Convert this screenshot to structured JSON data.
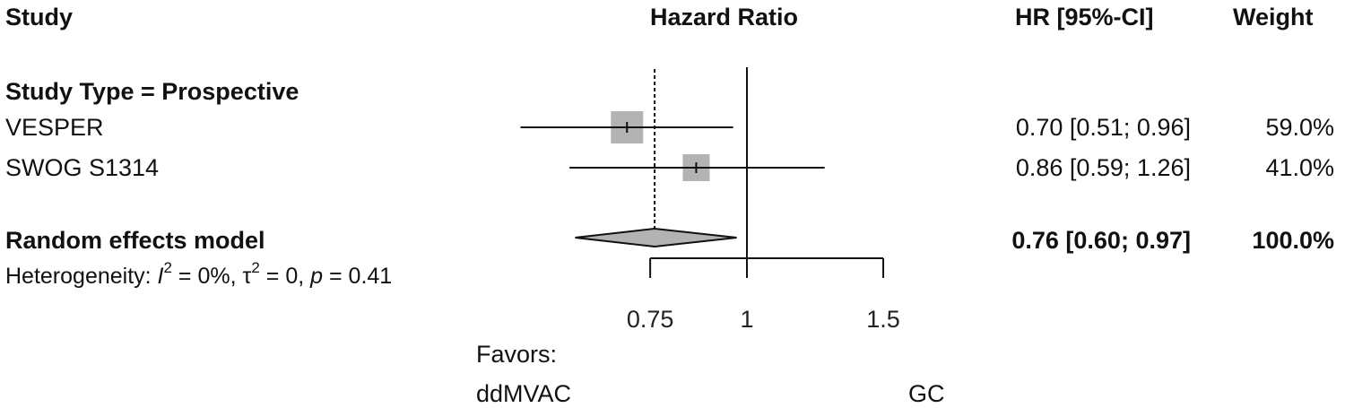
{
  "chart_data": {
    "type": "forest",
    "headers": {
      "study": "Study",
      "plot": "Hazard Ratio",
      "ci": "HR [95%-CI]",
      "weight": "Weight"
    },
    "subgroup": "Study Type = Prospective",
    "studies": [
      {
        "name": "VESPER",
        "hr": 0.7,
        "lower": 0.51,
        "upper": 0.96,
        "ci_text": "0.70 [0.51; 0.96]",
        "weight": 59.0,
        "weight_text": "59.0%"
      },
      {
        "name": "SWOG S1314",
        "hr": 0.86,
        "lower": 0.59,
        "upper": 1.26,
        "ci_text": "0.86 [0.59; 1.26]",
        "weight": 41.0,
        "weight_text": "41.0%"
      }
    ],
    "pooled": {
      "name": "Random effects model",
      "hr": 0.76,
      "lower": 0.6,
      "upper": 0.97,
      "ci_text": "0.76 [0.60; 0.97]",
      "weight_text": "100.0%"
    },
    "heterogeneity": {
      "prefix": "Heterogeneity: ",
      "i2_label": "I",
      "i2": " = 0%, ",
      "tau_label": "τ",
      "tau": " = 0, ",
      "p_label": "p",
      "p": " = 0.41"
    },
    "x_scale": "log",
    "x_ticks": [
      0.75,
      1,
      1.5
    ],
    "x_tick_labels": [
      "0.75",
      "1",
      "1.5"
    ],
    "null_value": 1,
    "favors": {
      "label": "Favors:",
      "left": "ddMVAC",
      "right": "GC"
    },
    "colors": {
      "box": "#b3b3b3",
      "line": "#111111"
    }
  }
}
